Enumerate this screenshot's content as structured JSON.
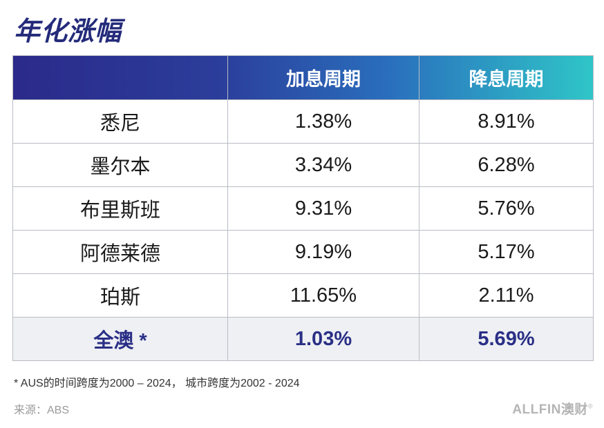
{
  "title": "年化涨幅",
  "table": {
    "headers": [
      "",
      "加息周期",
      "降息周期"
    ],
    "rows": [
      {
        "city": "悉尼",
        "hike": "1.38%",
        "cut": "8.91%"
      },
      {
        "city": "墨尔本",
        "hike": "3.34%",
        "cut": "6.28%"
      },
      {
        "city": "布里斯班",
        "hike": "9.31%",
        "cut": "5.76%"
      },
      {
        "city": "阿德莱德",
        "hike": "9.19%",
        "cut": "5.17%"
      },
      {
        "city": "珀斯",
        "hike": "11.65%",
        "cut": "2.11%"
      }
    ],
    "total": {
      "city": "全澳 *",
      "hike": "1.03%",
      "cut": "5.69%"
    }
  },
  "footnote": "* AUS的时间跨度为2000 – 2024， 城市跨度为2002 - 2024",
  "source": "来源：ABS",
  "brand": {
    "text": "ALLFIN澳财",
    "mark": "®"
  },
  "colors": {
    "title": "#242b7a",
    "header_gradient_start": "#2b2a8a",
    "header_gradient_end": "#2fc6c8",
    "total_text": "#2a2f86",
    "total_bg": "#eef0f3"
  }
}
